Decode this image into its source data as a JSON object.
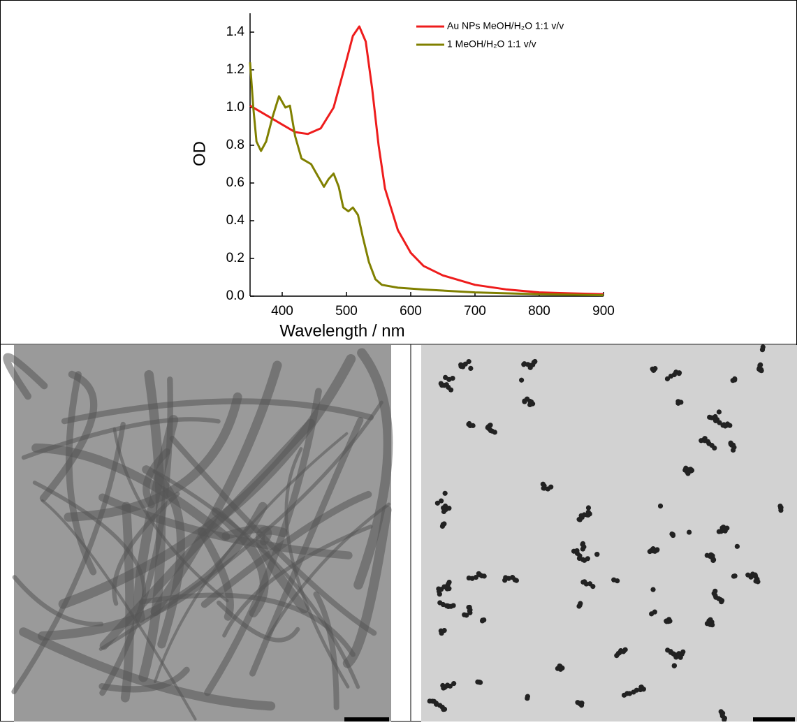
{
  "chart_data": {
    "type": "line",
    "x_label": "Wavelength / nm",
    "y_label": "OD",
    "xlim": [
      350,
      900
    ],
    "xticks": [
      400,
      500,
      600,
      700,
      800,
      900
    ],
    "ylim": [
      0,
      1.5
    ],
    "yticks": [
      {
        "value": 0,
        "label": "0.0"
      },
      {
        "value": 0.2,
        "label": "0.2"
      },
      {
        "value": 0.4,
        "label": "0.4"
      },
      {
        "value": 0.6,
        "label": "0.6"
      },
      {
        "value": 0.8,
        "label": "0.8"
      },
      {
        "value": 1,
        "label": "1.0"
      },
      {
        "value": 1.2,
        "label": "1.2"
      },
      {
        "value": 1.4,
        "label": "1.4"
      }
    ],
    "legend": "upper-right",
    "series": [
      {
        "name": "Au NPs MeOH/H₂O 1:1 v/v",
        "color": "#ee1c1c",
        "x": [
          350,
          370,
          400,
          420,
          440,
          460,
          480,
          500,
          510,
          520,
          530,
          540,
          550,
          560,
          580,
          600,
          620,
          650,
          700,
          750,
          800,
          850,
          900
        ],
        "values": [
          1.01,
          0.97,
          0.91,
          0.87,
          0.86,
          0.89,
          1.0,
          1.25,
          1.38,
          1.43,
          1.35,
          1.1,
          0.8,
          0.57,
          0.35,
          0.23,
          0.16,
          0.11,
          0.06,
          0.035,
          0.02,
          0.015,
          0.01
        ]
      },
      {
        "name": "1 MeOH/H₂O 1:1 v/v",
        "color": "#808000",
        "x": [
          350,
          355,
          360,
          367,
          375,
          385,
          395,
          405,
          412,
          420,
          430,
          445,
          455,
          465,
          472,
          480,
          488,
          495,
          503,
          510,
          518,
          525,
          535,
          545,
          555,
          580,
          620,
          700,
          800,
          900
        ],
        "values": [
          1.24,
          1.0,
          0.82,
          0.77,
          0.82,
          0.95,
          1.06,
          1.0,
          1.01,
          0.85,
          0.73,
          0.7,
          0.64,
          0.58,
          0.62,
          0.65,
          0.58,
          0.47,
          0.45,
          0.47,
          0.43,
          0.32,
          0.18,
          0.09,
          0.06,
          0.045,
          0.035,
          0.02,
          0.01,
          0.005
        ]
      }
    ]
  }
}
